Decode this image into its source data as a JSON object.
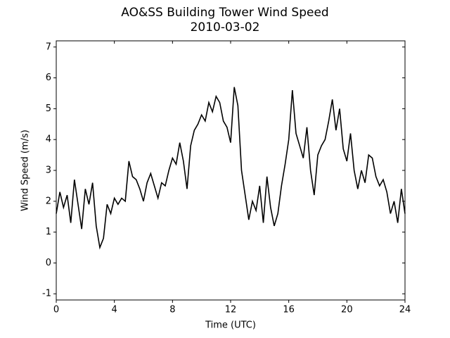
{
  "chart_data": {
    "type": "line",
    "title": "AO&SS Building Tower Wind Speed",
    "subtitle": "2010-03-02",
    "x_label": "Time (UTC)",
    "y_label": "Wind Speed (m/s)",
    "xlim": [
      0,
      24
    ],
    "xticks": [
      0,
      4,
      8,
      12,
      16,
      20,
      24
    ],
    "ylim": [
      -1.2,
      7.2
    ],
    "yticks": [
      -1,
      0,
      1,
      2,
      3,
      4,
      5,
      6,
      7
    ],
    "x": [
      0,
      0.25,
      0.5,
      0.75,
      1,
      1.25,
      1.5,
      1.75,
      2,
      2.25,
      2.5,
      2.75,
      3,
      3.25,
      3.5,
      3.75,
      4,
      4.25,
      4.5,
      4.75,
      5,
      5.25,
      5.5,
      5.75,
      6,
      6.25,
      6.5,
      6.75,
      7,
      7.25,
      7.5,
      7.75,
      8,
      8.25,
      8.5,
      8.75,
      9,
      9.25,
      9.5,
      9.75,
      10,
      10.25,
      10.5,
      10.75,
      11,
      11.25,
      11.5,
      11.75,
      12,
      12.25,
      12.5,
      12.75,
      13,
      13.25,
      13.5,
      13.75,
      14,
      14.25,
      14.5,
      14.75,
      15,
      15.25,
      15.5,
      15.75,
      16,
      16.25,
      16.5,
      16.75,
      17,
      17.25,
      17.5,
      17.75,
      18,
      18.25,
      18.5,
      18.75,
      19,
      19.25,
      19.5,
      19.75,
      20,
      20.25,
      20.5,
      20.75,
      21,
      21.25,
      21.5,
      21.75,
      22,
      22.25,
      22.5,
      22.75,
      23,
      23.25,
      23.5,
      23.75,
      24
    ],
    "series": [
      {
        "name": "Wind Speed",
        "color": "#000000",
        "values": [
          1.6,
          2.3,
          1.8,
          2.2,
          1.3,
          2.7,
          1.9,
          1.1,
          2.4,
          1.9,
          2.6,
          1.2,
          0.5,
          0.8,
          1.9,
          1.6,
          2.1,
          1.9,
          2.1,
          2.0,
          3.3,
          2.8,
          2.7,
          2.4,
          2.0,
          2.6,
          2.9,
          2.5,
          2.1,
          2.6,
          2.5,
          3.0,
          3.4,
          3.2,
          3.9,
          3.3,
          2.4,
          3.8,
          4.3,
          4.5,
          4.8,
          4.6,
          5.2,
          4.9,
          5.4,
          5.2,
          4.6,
          4.4,
          3.9,
          5.7,
          5.1,
          3.0,
          2.2,
          1.4,
          2.0,
          1.7,
          2.5,
          1.3,
          2.8,
          1.8,
          1.2,
          1.6,
          2.5,
          3.2,
          4.0,
          5.6,
          4.2,
          3.8,
          3.4,
          4.4,
          3.0,
          2.2,
          3.5,
          3.8,
          4.0,
          4.6,
          5.3,
          4.3,
          5.0,
          3.7,
          3.3,
          4.2,
          3.0,
          2.4,
          3.0,
          2.6,
          3.5,
          3.4,
          2.8,
          2.5,
          2.7,
          2.3,
          1.6,
          2.0,
          1.3,
          2.4,
          1.6
        ]
      }
    ]
  }
}
